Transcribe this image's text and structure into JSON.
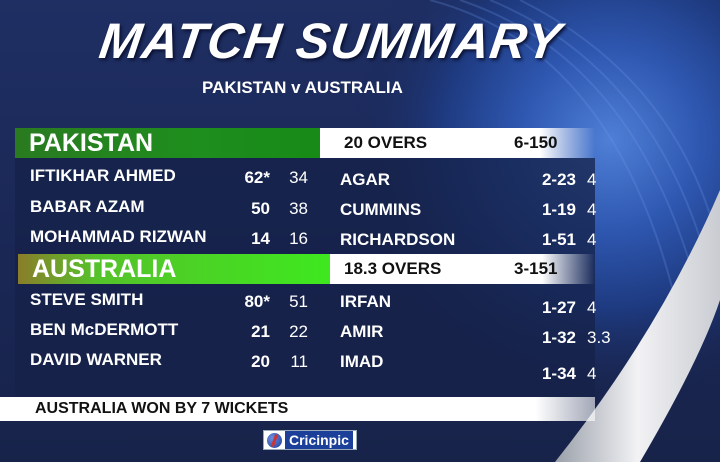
{
  "title": "MATCH SUMMARY",
  "subtitle": "PAKISTAN v AUSTRALIA",
  "innings": [
    {
      "team": "PAKISTAN",
      "overs": "20 OVERS",
      "score": "6-150",
      "batting": [
        {
          "name": "IFTIKHAR AHMED",
          "runs": "62*",
          "balls": "34"
        },
        {
          "name": "BABAR AZAM",
          "runs": "50",
          "balls": "38"
        },
        {
          "name": "MOHAMMAD RIZWAN",
          "runs": "14",
          "balls": "16"
        }
      ],
      "bowling": [
        {
          "name": "AGAR",
          "figures": "2-23",
          "overs": "4"
        },
        {
          "name": "CUMMINS",
          "figures": "1-19",
          "overs": "4"
        },
        {
          "name": "RICHARDSON",
          "figures": "1-51",
          "overs": "4"
        }
      ]
    },
    {
      "team": "AUSTRALIA",
      "overs": "18.3 OVERS",
      "score": "3-151",
      "batting": [
        {
          "name": "STEVE SMITH",
          "runs": "80*",
          "balls": "51"
        },
        {
          "name": "BEN McDERMOTT",
          "runs": "21",
          "balls": "22"
        },
        {
          "name": "DAVID WARNER",
          "runs": "20",
          "balls": "11"
        }
      ],
      "bowling": [
        {
          "name": "IRFAN",
          "figures": "1-27",
          "overs": "4"
        },
        {
          "name": "AMIR",
          "figures": "1-32",
          "overs": "3.3"
        },
        {
          "name": "IMAD",
          "figures": "1-34",
          "overs": "4"
        }
      ]
    }
  ],
  "result": "AUSTRALIA WON BY 7 WICKETS",
  "logo": "Cricinpic",
  "colors": {
    "pakistan_green": "#1f8a1f",
    "australia_green": "#33dd22",
    "background": "#1c2a5a"
  }
}
